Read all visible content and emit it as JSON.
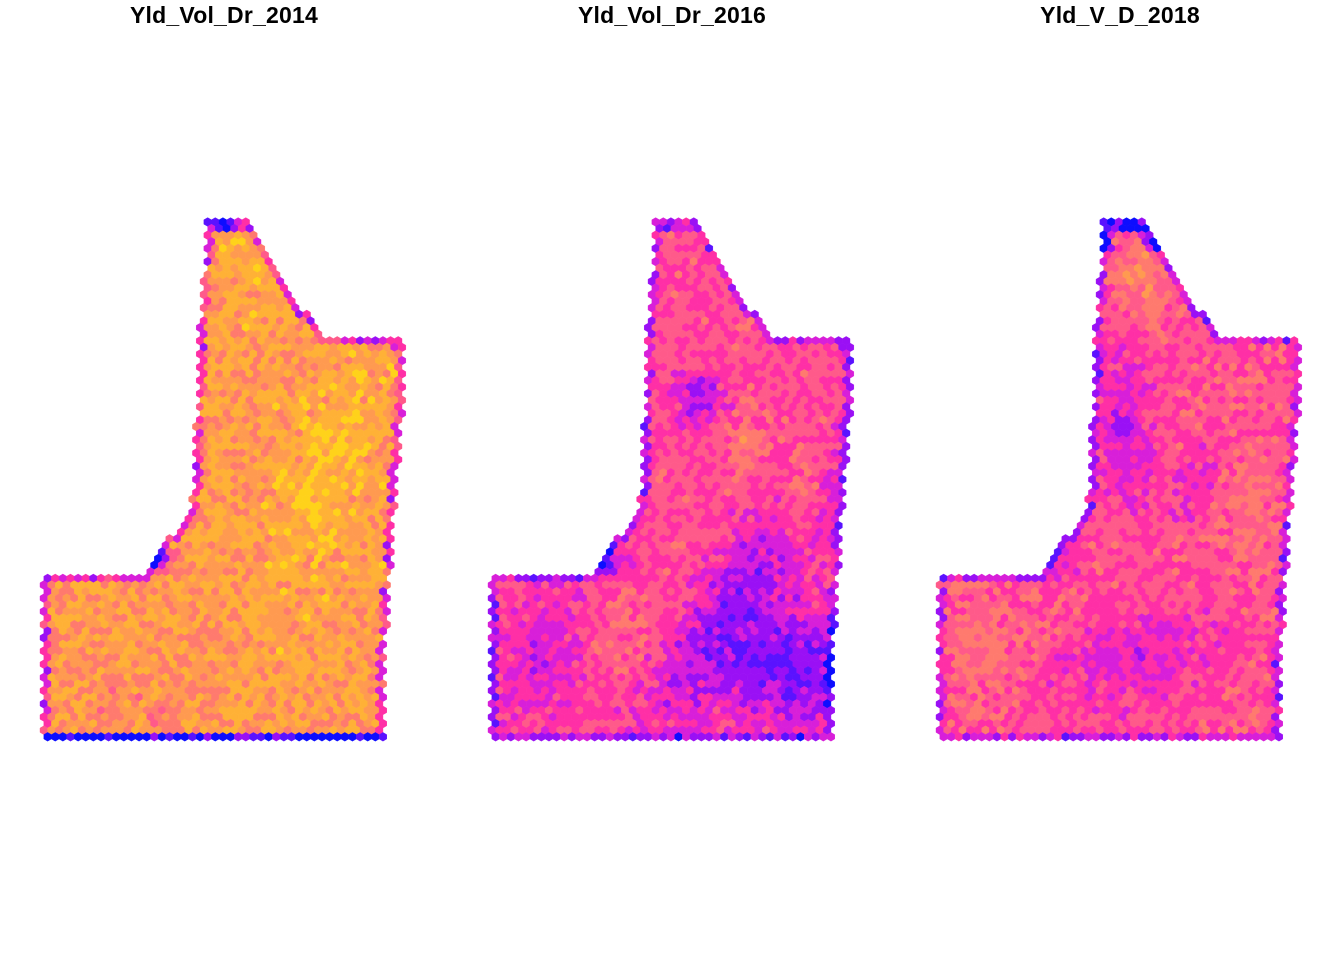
{
  "panels": [
    {
      "id": "2014",
      "title": "Yld_Vol_Dr_2014"
    },
    {
      "id": "2016",
      "title": "Yld_Vol_Dr_2016"
    },
    {
      "id": "2018",
      "title": "Yld_V_D_2018"
    }
  ],
  "palette": [
    "#0d0dff",
    "#5a12ff",
    "#9a10f5",
    "#d81fd9",
    "#ff2fa6",
    "#ff5a8a",
    "#ff7a6e",
    "#ff9a50",
    "#ffb136",
    "#ffd21a",
    "#fff200"
  ],
  "background_color": "#ffffff"
}
